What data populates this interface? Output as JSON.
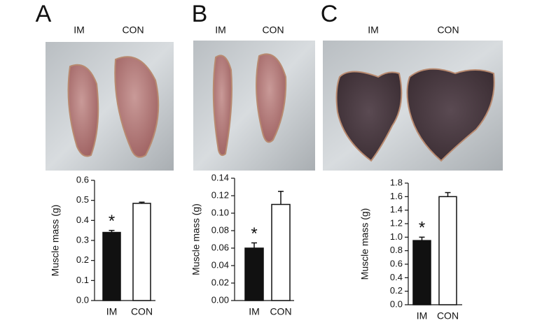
{
  "chart_data": [
    {
      "type": "bar",
      "panel": "A",
      "photo_labels": [
        "IM",
        "CON"
      ],
      "y_label": "Muscle mass (g)",
      "categories": [
        "IM",
        "CON"
      ],
      "values": [
        0.34,
        0.485
      ],
      "errors": [
        0.01,
        0.006
      ],
      "colors": [
        "#111111",
        "#ffffff"
      ],
      "annotation": "*",
      "ylim": [
        0,
        0.6
      ],
      "yticks": [
        {
          "value": 0,
          "label": "0.0"
        },
        0.1,
        0.2,
        0.3,
        0.4,
        0.5,
        0.6
      ]
    },
    {
      "type": "bar",
      "panel": "B",
      "photo_labels": [
        "IM",
        "CON"
      ],
      "y_label": "Muscle mass (g)",
      "categories": [
        "IM",
        "CON"
      ],
      "values": [
        0.06,
        0.11
      ],
      "errors": [
        0.006,
        0.015
      ],
      "colors": [
        "#111111",
        "#ffffff"
      ],
      "annotation": "*",
      "ylim": [
        0,
        0.14
      ],
      "yticks": [
        {
          "value": 0,
          "label": "0.00"
        },
        0.02,
        0.04,
        0.06,
        0.08,
        {
          "value": 0.1,
          "label": "0.10"
        },
        0.12,
        0.14
      ]
    },
    {
      "type": "bar",
      "panel": "C",
      "photo_labels": [
        "IM",
        "CON"
      ],
      "y_label": "Muscle mass (g)",
      "categories": [
        "IM",
        "CON"
      ],
      "values": [
        0.95,
        1.6
      ],
      "errors": [
        0.05,
        0.06
      ],
      "colors": [
        "#111111",
        "#ffffff"
      ],
      "annotation": "*",
      "ylim": [
        0,
        1.8
      ],
      "yticks": [
        {
          "value": 0,
          "label": "0.0"
        },
        0.2,
        0.4,
        0.6,
        0.8,
        {
          "value": 1,
          "label": "1.0"
        },
        1.2,
        1.4,
        1.6,
        1.8
      ]
    }
  ]
}
